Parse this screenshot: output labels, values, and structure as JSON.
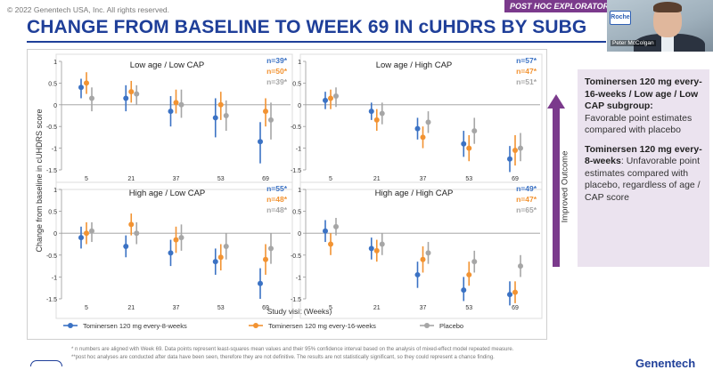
{
  "header": {
    "copyright": "© 2022 Genentech USA, Inc. All rights reserved.",
    "badge": "POST HOC EXPLORATORY",
    "title": "CHANGE FROM BASELINE TO WEEK 69 IN cUHDRS BY SUBG"
  },
  "video": {
    "speaker_name": "Peter McColgan",
    "logo_text": "Roche"
  },
  "colors": {
    "tomi8": "#3b72c4",
    "tomi16": "#f29332",
    "placebo": "#a6a6a6",
    "title": "#1f3f99",
    "accent": "#7b3a8c"
  },
  "chart": {
    "ylabel": "Change from baseline in cUHDRS score",
    "xlabel": "Study visit (Weeks)",
    "xticks": [
      "5",
      "21",
      "37",
      "53",
      "69"
    ],
    "yticks": [
      "1",
      "0.5",
      "0",
      "-0.5",
      "-1",
      "-1.5"
    ],
    "legend": [
      "Tominersen 120 mg every-8-weeks",
      "Tominersen 120 mg every-16-weeks",
      "Placebo"
    ]
  },
  "chart_data": [
    {
      "type": "scatter",
      "title": "Low age / Low CAP",
      "n_labels": [
        "n=39*",
        "n=50*",
        "n=39*"
      ],
      "x": [
        5,
        21,
        37,
        53,
        69
      ],
      "ylim": [
        -1.5,
        1
      ],
      "series": [
        {
          "name": "Tominersen 120 mg every-8-weeks",
          "values": [
            0.4,
            0.15,
            -0.15,
            -0.3,
            -0.85
          ],
          "lower": [
            0.15,
            -0.15,
            -0.5,
            -0.75,
            -1.35
          ],
          "upper": [
            0.6,
            0.45,
            0.2,
            0.15,
            -0.4
          ]
        },
        {
          "name": "Tominersen 120 mg every-16-weeks",
          "values": [
            0.5,
            0.3,
            0.05,
            0.0,
            -0.15
          ],
          "lower": [
            0.25,
            0.05,
            -0.2,
            -0.35,
            -0.5
          ],
          "upper": [
            0.75,
            0.55,
            0.35,
            0.3,
            0.15
          ]
        },
        {
          "name": "Placebo",
          "values": [
            0.15,
            0.25,
            0.0,
            -0.25,
            -0.35
          ],
          "lower": [
            -0.15,
            0.0,
            -0.3,
            -0.6,
            -0.8
          ],
          "upper": [
            0.4,
            0.45,
            0.35,
            0.1,
            0.05
          ]
        }
      ]
    },
    {
      "type": "scatter",
      "title": "Low age / High CAP",
      "n_labels": [
        "n=57*",
        "n=47*",
        "n=51*"
      ],
      "x": [
        5,
        21,
        37,
        53,
        69
      ],
      "ylim": [
        -1.5,
        1
      ],
      "series": [
        {
          "name": "Tominersen 120 mg every-8-weeks",
          "values": [
            0.1,
            -0.15,
            -0.55,
            -0.9,
            -1.25
          ],
          "lower": [
            -0.1,
            -0.35,
            -0.8,
            -1.2,
            -1.55
          ],
          "upper": [
            0.3,
            0.05,
            -0.3,
            -0.6,
            -0.95
          ]
        },
        {
          "name": "Tominersen 120 mg every-16-weeks",
          "values": [
            0.15,
            -0.35,
            -0.75,
            -1.0,
            -1.05
          ],
          "lower": [
            -0.1,
            -0.6,
            -1.0,
            -1.3,
            -1.4
          ],
          "upper": [
            0.35,
            -0.1,
            -0.5,
            -0.7,
            -0.7
          ]
        },
        {
          "name": "Placebo",
          "values": [
            0.2,
            -0.2,
            -0.4,
            -0.6,
            -1.0
          ],
          "lower": [
            -0.05,
            -0.45,
            -0.65,
            -0.9,
            -1.3
          ],
          "upper": [
            0.4,
            0.05,
            -0.15,
            -0.3,
            -0.65
          ]
        }
      ]
    },
    {
      "type": "scatter",
      "title": "High age / Low CAP",
      "n_labels": [
        "n=55*",
        "n=48*",
        "n=48*"
      ],
      "x": [
        5,
        21,
        37,
        53,
        69
      ],
      "ylim": [
        -1.5,
        1
      ],
      "series": [
        {
          "name": "Tominersen 120 mg every-8-weeks",
          "values": [
            -0.1,
            -0.3,
            -0.45,
            -0.65,
            -1.15
          ],
          "lower": [
            -0.35,
            -0.55,
            -0.75,
            -0.95,
            -1.5
          ],
          "upper": [
            0.15,
            -0.05,
            -0.15,
            -0.35,
            -0.8
          ]
        },
        {
          "name": "Tominersen 120 mg every-16-weeks",
          "values": [
            0.0,
            0.2,
            -0.15,
            -0.55,
            -0.6
          ],
          "lower": [
            -0.25,
            -0.05,
            -0.45,
            -0.85,
            -0.95
          ],
          "upper": [
            0.25,
            0.45,
            0.15,
            -0.25,
            -0.25
          ]
        },
        {
          "name": "Placebo",
          "values": [
            0.05,
            0.0,
            -0.1,
            -0.3,
            -0.35
          ],
          "lower": [
            -0.2,
            -0.25,
            -0.4,
            -0.6,
            -0.7
          ],
          "upper": [
            0.25,
            0.25,
            0.2,
            0.0,
            0.0
          ]
        }
      ]
    },
    {
      "type": "scatter",
      "title": "High age / High CAP",
      "n_labels": [
        "n=49*",
        "n=47*",
        "n=65*"
      ],
      "x": [
        5,
        21,
        37,
        53,
        69
      ],
      "ylim": [
        -1.5,
        1
      ],
      "series": [
        {
          "name": "Tominersen 120 mg every-8-weeks",
          "values": [
            0.05,
            -0.35,
            -0.95,
            -1.3,
            -1.4
          ],
          "lower": [
            -0.2,
            -0.6,
            -1.25,
            -1.55,
            -1.65
          ],
          "upper": [
            0.3,
            -0.1,
            -0.65,
            -1.0,
            -1.1
          ]
        },
        {
          "name": "Tominersen 120 mg every-16-weeks",
          "values": [
            -0.25,
            -0.4,
            -0.6,
            -0.95,
            -1.35
          ],
          "lower": [
            -0.5,
            -0.65,
            -0.9,
            -1.2,
            -1.6
          ],
          "upper": [
            0.0,
            -0.15,
            -0.3,
            -0.65,
            -1.1
          ]
        },
        {
          "name": "Placebo",
          "values": [
            0.15,
            -0.25,
            -0.45,
            -0.65,
            -0.75
          ],
          "lower": [
            -0.05,
            -0.5,
            -0.7,
            -0.9,
            -1.0
          ],
          "upper": [
            0.35,
            0.0,
            -0.2,
            -0.4,
            -0.5
          ]
        }
      ]
    }
  ],
  "sidebar": {
    "arrow_label": "Improved Outcome",
    "block1_bold": "Tominersen 120 mg every-16-weeks / Low age / Low CAP subgroup:",
    "block1_text": "Favorable point estimates compared with placebo",
    "block2_bold": "Tominersen 120 mg every-8-weeks",
    "block2_text": ": Unfavorable point estimates compared with placebo, regardless of age / CAP score"
  },
  "footnotes": {
    "line1": "* n numbers are aligned with Week 69. Data points represent least-squares mean values and their 95% confidence interval based on the analysis of mixed-effect model repeated measure.",
    "line2": "**post hoc analyses are conducted after data have been seen, therefore they are not definitive. The results are not statistically significant, so they could represent a chance finding."
  },
  "footer": {
    "brand": "Genentech"
  }
}
